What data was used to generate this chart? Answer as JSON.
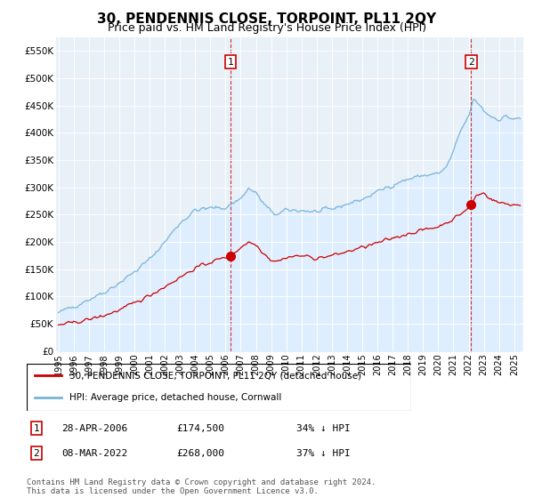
{
  "title": "30, PENDENNIS CLOSE, TORPOINT, PL11 2QY",
  "subtitle": "Price paid vs. HM Land Registry's House Price Index (HPI)",
  "sale1_date_label": "28-APR-2006",
  "sale1_price": 174500,
  "sale2_date_label": "08-MAR-2022",
  "sale2_price": 268000,
  "sale1_pct": "34%",
  "sale2_pct": "37%",
  "legend_house": "30, PENDENNIS CLOSE, TORPOINT, PL11 2QY (detached house)",
  "legend_hpi": "HPI: Average price, detached house, Cornwall",
  "footer": "Contains HM Land Registry data © Crown copyright and database right 2024.\nThis data is licensed under the Open Government Licence v3.0.",
  "hpi_color": "#7ab4d8",
  "hpi_fill_color": "#ddeeff",
  "sale_color": "#cc0000",
  "ylim": [
    0,
    575000
  ],
  "yticks": [
    0,
    50000,
    100000,
    150000,
    200000,
    250000,
    300000,
    350000,
    400000,
    450000,
    500000,
    550000
  ],
  "background_color": "#ffffff",
  "plot_bg_color": "#e8f0f8",
  "grid_color": "#ffffff",
  "title_fontsize": 11,
  "subtitle_fontsize": 9
}
